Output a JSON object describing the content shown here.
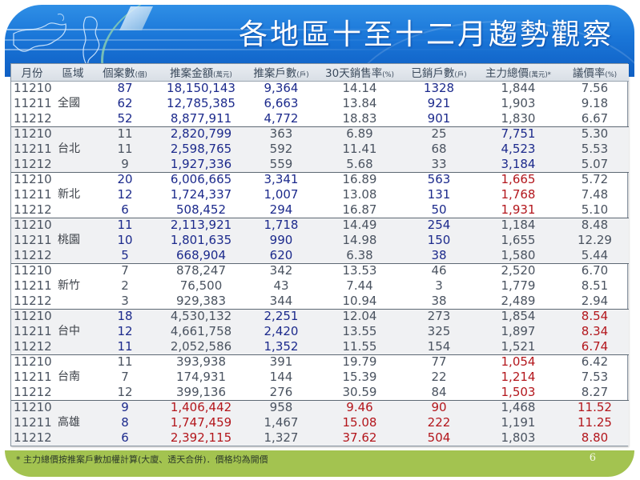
{
  "header": {
    "title": "各地區十至十二月趨勢觀察"
  },
  "table": {
    "columns": [
      {
        "label": "月份",
        "unit": ""
      },
      {
        "label": "區域",
        "unit": ""
      },
      {
        "label": "個案數",
        "unit": "(個)"
      },
      {
        "label": "推案金額",
        "unit": "(萬元)"
      },
      {
        "label": "推案戶數",
        "unit": "(戶)"
      },
      {
        "label": "30天銷售率",
        "unit": "(%)"
      },
      {
        "label": "已銷戶數",
        "unit": "(戶)"
      },
      {
        "label": "主力總價",
        "unit": "(萬元)*"
      },
      {
        "label": "議價率",
        "unit": "(%)"
      }
    ],
    "groups": [
      {
        "region": "全國",
        "shade": false,
        "rows": [
          {
            "month": "11210",
            "cases": "87",
            "amount": "18,150,143",
            "units": "9,364",
            "rate30": "14.14",
            "sold": "1328",
            "price": "1,844",
            "discount": "7.56"
          },
          {
            "month": "11211",
            "cases": "62",
            "amount": "12,785,385",
            "units": "6,663",
            "rate30": "13.84",
            "sold": "921",
            "price": "1,903",
            "discount": "9.18"
          },
          {
            "month": "11212",
            "cases": "52",
            "amount": "8,877,911",
            "units": "4,772",
            "rate30": "18.83",
            "sold": "901",
            "price": "1,830",
            "discount": "6.67"
          }
        ],
        "colors": {
          "cases": "blue",
          "amount": "blue",
          "units": "blue",
          "rate30": "",
          "sold": "blue",
          "price": "",
          "discount": ""
        }
      },
      {
        "region": "台北",
        "shade": true,
        "rows": [
          {
            "month": "11210",
            "cases": "11",
            "amount": "2,820,799",
            "units": "363",
            "rate30": "6.89",
            "sold": "25",
            "price": "7,751",
            "discount": "5.30"
          },
          {
            "month": "11211",
            "cases": "11",
            "amount": "2,598,765",
            "units": "592",
            "rate30": "11.41",
            "sold": "68",
            "price": "4,523",
            "discount": "5.53"
          },
          {
            "month": "11212",
            "cases": "9",
            "amount": "1,927,336",
            "units": "559",
            "rate30": "5.68",
            "sold": "33",
            "price": "3,184",
            "discount": "5.07"
          }
        ],
        "colors": {
          "cases": "",
          "amount": "blue",
          "units": "",
          "rate30": "",
          "sold": "",
          "price": "blue",
          "discount": ""
        }
      },
      {
        "region": "新北",
        "shade": false,
        "rows": [
          {
            "month": "11210",
            "cases": "20",
            "amount": "6,006,665",
            "units": "3,341",
            "rate30": "16.89",
            "sold": "563",
            "price": "1,665",
            "discount": "5.72"
          },
          {
            "month": "11211",
            "cases": "12",
            "amount": "1,724,337",
            "units": "1,007",
            "rate30": "13.08",
            "sold": "131",
            "price": "1,768",
            "discount": "7.48"
          },
          {
            "month": "11212",
            "cases": "6",
            "amount": "508,452",
            "units": "294",
            "rate30": "16.87",
            "sold": "50",
            "price": "1,931",
            "discount": "5.10"
          }
        ],
        "colors": {
          "cases": "blue",
          "amount": "blue",
          "units": "blue",
          "rate30": "",
          "sold": "blue",
          "price": "red",
          "discount": ""
        }
      },
      {
        "region": "桃園",
        "shade": true,
        "rows": [
          {
            "month": "11210",
            "cases": "11",
            "amount": "2,113,921",
            "units": "1,718",
            "rate30": "14.49",
            "sold": "254",
            "price": "1,184",
            "discount": "8.48"
          },
          {
            "month": "11211",
            "cases": "10",
            "amount": "1,801,635",
            "units": "990",
            "rate30": "14.98",
            "sold": "150",
            "price": "1,655",
            "discount": "12.29"
          },
          {
            "month": "11212",
            "cases": "5",
            "amount": "668,904",
            "units": "620",
            "rate30": "6.38",
            "sold": "38",
            "price": "1,580",
            "discount": "5.44"
          }
        ],
        "colors": {
          "cases": "blue",
          "amount": "blue",
          "units": "blue",
          "rate30": "",
          "sold": "blue",
          "price": "",
          "discount": ""
        }
      },
      {
        "region": "新竹",
        "shade": false,
        "rows": [
          {
            "month": "11210",
            "cases": "7",
            "amount": "878,247",
            "units": "342",
            "rate30": "13.53",
            "sold": "46",
            "price": "2,520",
            "discount": "6.70"
          },
          {
            "month": "11211",
            "cases": "2",
            "amount": "76,500",
            "units": "43",
            "rate30": "7.44",
            "sold": "3",
            "price": "1,779",
            "discount": "8.51"
          },
          {
            "month": "11212",
            "cases": "3",
            "amount": "929,383",
            "units": "344",
            "rate30": "10.94",
            "sold": "38",
            "price": "2,489",
            "discount": "2.94"
          }
        ],
        "colors": {
          "cases": "",
          "amount": "",
          "units": "",
          "rate30": "",
          "sold": "",
          "price": "",
          "discount": ""
        }
      },
      {
        "region": "台中",
        "shade": true,
        "rows": [
          {
            "month": "11210",
            "cases": "18",
            "amount": "4,530,132",
            "units": "2,251",
            "rate30": "12.04",
            "sold": "273",
            "price": "1,854",
            "discount": "8.54"
          },
          {
            "month": "11211",
            "cases": "12",
            "amount": "4,661,758",
            "units": "2,420",
            "rate30": "13.55",
            "sold": "325",
            "price": "1,897",
            "discount": "8.34"
          },
          {
            "month": "11212",
            "cases": "11",
            "amount": "2,052,586",
            "units": "1,352",
            "rate30": "11.55",
            "sold": "154",
            "price": "1,521",
            "discount": "6.74"
          }
        ],
        "colors": {
          "cases": "blue",
          "amount": "",
          "units": "blue",
          "rate30": "",
          "sold": "",
          "price": "",
          "discount": "red"
        }
      },
      {
        "region": "台南",
        "shade": false,
        "rows": [
          {
            "month": "11210",
            "cases": "11",
            "amount": "393,938",
            "units": "391",
            "rate30": "19.79",
            "sold": "77",
            "price": "1,054",
            "discount": "6.42"
          },
          {
            "month": "11211",
            "cases": "7",
            "amount": "174,931",
            "units": "144",
            "rate30": "15.39",
            "sold": "22",
            "price": "1,214",
            "discount": "7.53"
          },
          {
            "month": "11212",
            "cases": "12",
            "amount": "399,136",
            "units": "276",
            "rate30": "30.59",
            "sold": "84",
            "price": "1,503",
            "discount": "8.27"
          }
        ],
        "colors": {
          "cases": "",
          "amount": "",
          "units": "",
          "rate30": "",
          "sold": "",
          "price": "red",
          "discount": ""
        }
      },
      {
        "region": "高雄",
        "shade": true,
        "rows": [
          {
            "month": "11210",
            "cases": "9",
            "amount": "1,406,442",
            "units": "958",
            "rate30": "9.46",
            "sold": "90",
            "price": "1,468",
            "discount": "11.52"
          },
          {
            "month": "11211",
            "cases": "8",
            "amount": "1,747,459",
            "units": "1,467",
            "rate30": "15.08",
            "sold": "222",
            "price": "1,191",
            "discount": "11.25"
          },
          {
            "month": "11212",
            "cases": "6",
            "amount": "2,392,115",
            "units": "1,327",
            "rate30": "37.62",
            "sold": "504",
            "price": "1,803",
            "discount": "8.80"
          }
        ],
        "colors": {
          "cases": "blue",
          "amount": "red",
          "units": "",
          "rate30": "red",
          "sold": "red",
          "price": "",
          "discount": "red"
        }
      }
    ]
  },
  "footer": {
    "note": "* 主力總價按推案戶數加權計算(大廈、透天合併)．價格均為開價",
    "page_number": "6"
  },
  "colors": {
    "banner_blue": "#1a76d8",
    "footer_green": "#a3c350",
    "highlight_blue": "#1c2a8c",
    "highlight_red": "#b3161c",
    "text_gray": "#4a5360"
  }
}
